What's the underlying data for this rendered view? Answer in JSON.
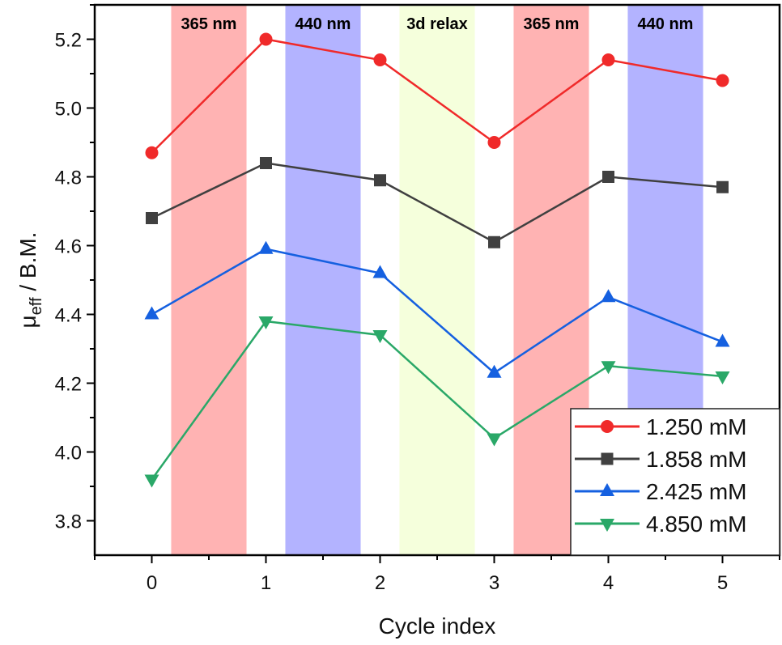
{
  "chart_data": {
    "type": "line",
    "xlabel": "Cycle index",
    "ylabel_main": "μ",
    "ylabel_sub": "eff",
    "ylabel_rest": " / B.M.",
    "xlim": [
      -0.5,
      5.5
    ],
    "ylim": [
      3.7,
      5.3
    ],
    "xticks": [
      0,
      1,
      2,
      3,
      4,
      5
    ],
    "yticks": [
      "3.8",
      "4.0",
      "4.2",
      "4.4",
      "4.6",
      "4.8",
      "5.0",
      "5.2"
    ],
    "grid": false,
    "legend_position": "bottom-right",
    "x": [
      0,
      1,
      2,
      3,
      4,
      5
    ],
    "bands": [
      {
        "label": "365 nm",
        "from": 0.17,
        "to": 0.83,
        "color": "#ff9a9a"
      },
      {
        "label": "440 nm",
        "from": 1.17,
        "to": 1.83,
        "color": "#9a9aff"
      },
      {
        "label": "3d relax",
        "from": 2.17,
        "to": 2.83,
        "color": "#f2ffd0"
      },
      {
        "label": "365 nm",
        "from": 3.17,
        "to": 3.83,
        "color": "#ff9a9a"
      },
      {
        "label": "440 nm",
        "from": 4.17,
        "to": 4.83,
        "color": "#9a9aff"
      }
    ],
    "series": [
      {
        "name": "1.250 mM",
        "color": "#f02a2a",
        "marker": "circle",
        "values": [
          4.87,
          5.2,
          5.14,
          4.9,
          5.14,
          5.08
        ]
      },
      {
        "name": "1.858 mM",
        "color": "#404040",
        "marker": "square",
        "values": [
          4.68,
          4.84,
          4.79,
          4.61,
          4.8,
          4.77
        ]
      },
      {
        "name": "2.425 mM",
        "color": "#1560e0",
        "marker": "triangle-up",
        "values": [
          4.4,
          4.59,
          4.52,
          4.23,
          4.45,
          4.32
        ]
      },
      {
        "name": "4.850 mM",
        "color": "#2aa868",
        "marker": "triangle-down",
        "values": [
          3.92,
          4.38,
          4.34,
          4.04,
          4.25,
          4.22
        ]
      }
    ]
  }
}
